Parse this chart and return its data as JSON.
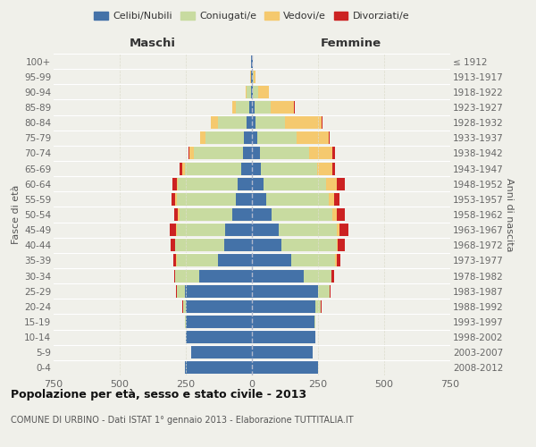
{
  "age_groups": [
    "0-4",
    "5-9",
    "10-14",
    "15-19",
    "20-24",
    "25-29",
    "30-34",
    "35-39",
    "40-44",
    "45-49",
    "50-54",
    "55-59",
    "60-64",
    "65-69",
    "70-74",
    "75-79",
    "80-84",
    "85-89",
    "90-94",
    "95-99",
    "100+"
  ],
  "birth_years": [
    "2008-2012",
    "2003-2007",
    "1998-2002",
    "1993-1997",
    "1988-1992",
    "1983-1987",
    "1978-1982",
    "1973-1977",
    "1968-1972",
    "1963-1967",
    "1958-1962",
    "1953-1957",
    "1948-1952",
    "1943-1947",
    "1938-1942",
    "1933-1937",
    "1928-1932",
    "1923-1927",
    "1918-1922",
    "1913-1917",
    "≤ 1912"
  ],
  "male": {
    "celibi": [
      255,
      230,
      250,
      250,
      250,
      255,
      200,
      130,
      105,
      100,
      75,
      60,
      55,
      40,
      35,
      30,
      20,
      10,
      5,
      2,
      2
    ],
    "coniugati": [
      0,
      0,
      0,
      2,
      10,
      30,
      90,
      155,
      185,
      185,
      200,
      225,
      225,
      215,
      185,
      145,
      110,
      50,
      15,
      3,
      1
    ],
    "vedovi": [
      0,
      0,
      0,
      0,
      0,
      0,
      0,
      2,
      2,
      2,
      5,
      5,
      5,
      10,
      15,
      20,
      25,
      15,
      5,
      2,
      0
    ],
    "divorziati": [
      0,
      0,
      0,
      0,
      2,
      2,
      5,
      10,
      15,
      25,
      15,
      15,
      15,
      10,
      5,
      2,
      0,
      0,
      0,
      0,
      0
    ]
  },
  "female": {
    "nubili": [
      250,
      230,
      240,
      235,
      240,
      250,
      195,
      150,
      110,
      100,
      75,
      55,
      45,
      35,
      30,
      20,
      15,
      10,
      5,
      2,
      2
    ],
    "coniugate": [
      0,
      0,
      0,
      5,
      20,
      45,
      105,
      165,
      210,
      220,
      230,
      235,
      235,
      210,
      185,
      150,
      110,
      60,
      20,
      5,
      1
    ],
    "vedove": [
      0,
      0,
      0,
      0,
      0,
      0,
      2,
      5,
      5,
      10,
      15,
      20,
      40,
      60,
      90,
      120,
      140,
      90,
      40,
      8,
      2
    ],
    "divorziate": [
      0,
      0,
      0,
      0,
      2,
      2,
      10,
      15,
      25,
      35,
      30,
      20,
      30,
      10,
      8,
      5,
      2,
      2,
      0,
      0,
      0
    ]
  },
  "colors": {
    "celibi": "#4472a8",
    "coniugati": "#c8dba0",
    "vedovi": "#f5c96e",
    "divorziati": "#cc2222"
  },
  "legend_labels": [
    "Celibi/Nubili",
    "Coniugati/e",
    "Vedovi/e",
    "Divorziati/e"
  ],
  "title": "Popolazione per età, sesso e stato civile - 2013",
  "subtitle": "COMUNE DI URBINO - Dati ISTAT 1° gennaio 2013 - Elaborazione TUTTITALIA.IT",
  "xlabel_left": "Maschi",
  "xlabel_right": "Femmine",
  "ylabel_left": "Fasce di età",
  "ylabel_right": "Anni di nascita",
  "xlim": 750,
  "bg_color": "#f0f0ea"
}
